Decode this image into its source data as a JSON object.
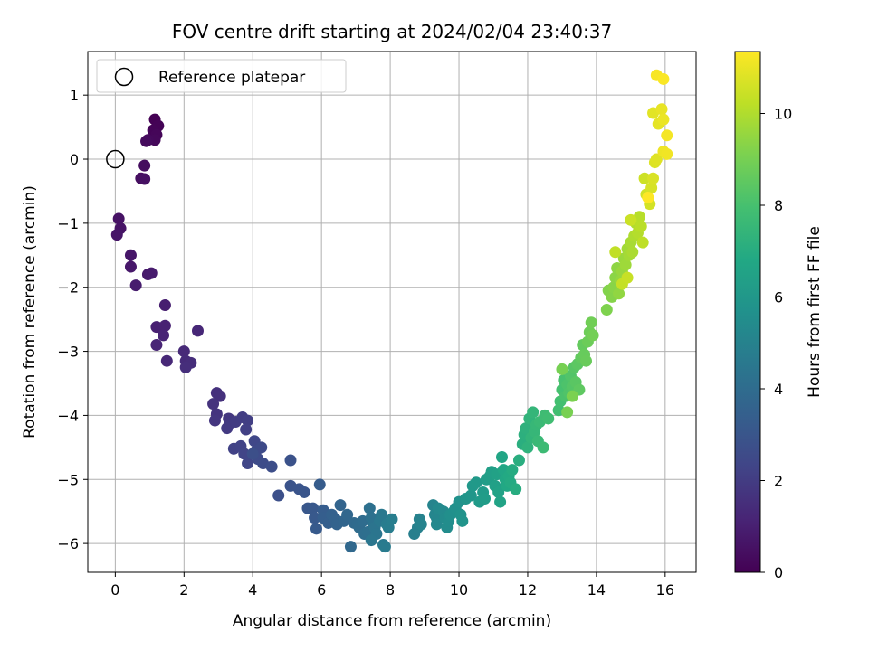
{
  "chart_data": {
    "type": "scatter",
    "title": "FOV centre drift starting at 2024/02/04 23:40:37",
    "xlabel": "Angular distance from reference (arcmin)",
    "ylabel": "Rotation from reference (arcmin)",
    "xlim": [
      -0.8,
      16.9
    ],
    "ylim": [
      -6.45,
      1.68
    ],
    "xticks": [
      0,
      2,
      4,
      6,
      8,
      10,
      12,
      14,
      16
    ],
    "yticks": [
      -6,
      -5,
      -4,
      -3,
      -2,
      -1,
      0,
      1
    ],
    "grid": true,
    "legend": {
      "position": "top-left",
      "entries": [
        "Reference platepar"
      ]
    },
    "reference_point": {
      "x": 0,
      "y": 0
    },
    "colorbar": {
      "label": "Hours from first FF file",
      "colormap": "viridis",
      "range": [
        0,
        11.35
      ],
      "ticks": [
        0,
        2,
        4,
        6,
        8,
        10
      ]
    },
    "series": [
      {
        "points": [
          [
            1.15,
            0.62
          ],
          [
            1.25,
            0.52
          ],
          [
            1.1,
            0.45
          ],
          [
            1.2,
            0.38
          ],
          [
            1.15,
            0.3
          ],
          [
            0.95,
            0.3
          ],
          [
            0.9,
            0.28
          ],
          [
            0.85,
            -0.1
          ],
          [
            0.75,
            -0.3
          ],
          [
            0.85,
            -0.31
          ],
          [
            0.1,
            -0.93
          ],
          [
            0.15,
            -1.08
          ],
          [
            0.05,
            -1.18
          ],
          [
            0.45,
            -1.5
          ],
          [
            0.45,
            -1.68
          ],
          [
            0.95,
            -1.8
          ],
          [
            1.05,
            -1.78
          ],
          [
            0.6,
            -1.97
          ],
          [
            1.45,
            -2.28
          ],
          [
            1.2,
            -2.62
          ],
          [
            1.45,
            -2.6
          ],
          [
            1.4,
            -2.75
          ],
          [
            1.2,
            -2.9
          ],
          [
            2.4,
            -2.68
          ],
          [
            1.5,
            -3.15
          ],
          [
            2.0,
            -3.0
          ],
          [
            2.05,
            -3.15
          ],
          [
            2.2,
            -3.18
          ],
          [
            2.05,
            -3.25
          ],
          [
            2.95,
            -3.65
          ],
          [
            3.05,
            -3.7
          ],
          [
            2.85,
            -3.82
          ],
          [
            2.95,
            -3.98
          ],
          [
            2.9,
            -4.08
          ],
          [
            3.3,
            -4.05
          ],
          [
            3.35,
            -4.12
          ],
          [
            3.25,
            -4.2
          ],
          [
            3.5,
            -4.1
          ],
          [
            3.7,
            -4.03
          ],
          [
            3.85,
            -4.08
          ],
          [
            3.8,
            -4.22
          ],
          [
            3.45,
            -4.52
          ],
          [
            3.65,
            -4.48
          ],
          [
            3.75,
            -4.6
          ],
          [
            3.85,
            -4.75
          ],
          [
            4.05,
            -4.4
          ],
          [
            4.1,
            -4.55
          ],
          [
            4.25,
            -4.5
          ],
          [
            4.15,
            -4.68
          ],
          [
            4.3,
            -4.75
          ],
          [
            4.55,
            -4.8
          ],
          [
            4.0,
            -4.6
          ],
          [
            4.75,
            -5.25
          ],
          [
            5.1,
            -4.7
          ],
          [
            5.1,
            -5.1
          ],
          [
            5.35,
            -5.15
          ],
          [
            5.5,
            -5.2
          ],
          [
            5.6,
            -5.45
          ],
          [
            5.75,
            -5.45
          ],
          [
            5.8,
            -5.6
          ],
          [
            5.85,
            -5.77
          ],
          [
            5.95,
            -5.08
          ],
          [
            6.05,
            -5.48
          ],
          [
            6.05,
            -5.6
          ],
          [
            6.2,
            -5.68
          ],
          [
            6.3,
            -5.55
          ],
          [
            6.4,
            -5.62
          ],
          [
            6.45,
            -5.7
          ],
          [
            6.55,
            -5.4
          ],
          [
            6.65,
            -5.65
          ],
          [
            6.75,
            -5.55
          ],
          [
            6.85,
            -6.05
          ],
          [
            6.95,
            -5.68
          ],
          [
            7.05,
            -5.7
          ],
          [
            7.1,
            -5.75
          ],
          [
            7.2,
            -5.65
          ],
          [
            7.25,
            -5.85
          ],
          [
            7.35,
            -5.82
          ],
          [
            7.4,
            -5.45
          ],
          [
            7.45,
            -5.6
          ],
          [
            7.5,
            -5.7
          ],
          [
            7.55,
            -5.75
          ],
          [
            7.6,
            -5.85
          ],
          [
            7.45,
            -5.95
          ],
          [
            7.7,
            -5.65
          ],
          [
            7.75,
            -5.55
          ],
          [
            7.8,
            -6.02
          ],
          [
            7.85,
            -6.05
          ],
          [
            7.9,
            -5.7
          ],
          [
            7.95,
            -5.75
          ],
          [
            8.05,
            -5.62
          ],
          [
            8.7,
            -5.85
          ],
          [
            8.8,
            -5.75
          ],
          [
            8.85,
            -5.62
          ],
          [
            8.9,
            -5.7
          ],
          [
            9.25,
            -5.4
          ],
          [
            9.3,
            -5.55
          ],
          [
            9.35,
            -5.6
          ],
          [
            9.35,
            -5.7
          ],
          [
            9.4,
            -5.45
          ],
          [
            9.55,
            -5.5
          ],
          [
            9.6,
            -5.6
          ],
          [
            9.65,
            -5.75
          ],
          [
            9.7,
            -5.65
          ],
          [
            9.75,
            -5.55
          ],
          [
            9.85,
            -5.5
          ],
          [
            9.9,
            -5.45
          ],
          [
            10.0,
            -5.35
          ],
          [
            10.05,
            -5.55
          ],
          [
            10.1,
            -5.65
          ],
          [
            10.2,
            -5.3
          ],
          [
            10.35,
            -5.25
          ],
          [
            10.4,
            -5.1
          ],
          [
            10.5,
            -5.05
          ],
          [
            10.6,
            -5.35
          ],
          [
            10.7,
            -5.2
          ],
          [
            10.75,
            -5.3
          ],
          [
            10.8,
            -5.0
          ],
          [
            10.9,
            -4.95
          ],
          [
            10.95,
            -4.88
          ],
          [
            11.05,
            -5.1
          ],
          [
            11.1,
            -4.92
          ],
          [
            11.15,
            -5.2
          ],
          [
            11.2,
            -5.35
          ],
          [
            11.25,
            -4.65
          ],
          [
            11.3,
            -4.85
          ],
          [
            11.35,
            -5.0
          ],
          [
            11.4,
            -5.1
          ],
          [
            11.45,
            -4.95
          ],
          [
            11.5,
            -5.05
          ],
          [
            11.55,
            -4.85
          ],
          [
            11.65,
            -5.15
          ],
          [
            11.75,
            -4.7
          ],
          [
            11.85,
            -4.45
          ],
          [
            11.9,
            -4.3
          ],
          [
            11.95,
            -4.2
          ],
          [
            12.0,
            -4.5
          ],
          [
            12.05,
            -4.05
          ],
          [
            12.1,
            -4.35
          ],
          [
            12.15,
            -3.95
          ],
          [
            12.2,
            -4.25
          ],
          [
            12.25,
            -4.15
          ],
          [
            12.3,
            -4.4
          ],
          [
            12.35,
            -4.1
          ],
          [
            12.45,
            -4.5
          ],
          [
            12.5,
            -4.0
          ],
          [
            12.6,
            -4.05
          ],
          [
            12.9,
            -3.92
          ],
          [
            12.95,
            -3.78
          ],
          [
            13.0,
            -3.6
          ],
          [
            13.05,
            -3.45
          ],
          [
            13.1,
            -3.7
          ],
          [
            13.15,
            -3.52
          ],
          [
            13.2,
            -3.65
          ],
          [
            13.25,
            -3.38
          ],
          [
            13.3,
            -3.55
          ],
          [
            13.35,
            -3.25
          ],
          [
            13.4,
            -3.48
          ],
          [
            13.45,
            -3.2
          ],
          [
            13.5,
            -3.6
          ],
          [
            13.55,
            -3.1
          ],
          [
            13.6,
            -2.9
          ],
          [
            13.65,
            -3.05
          ],
          [
            13.7,
            -3.15
          ],
          [
            13.75,
            -2.85
          ],
          [
            13.8,
            -2.7
          ],
          [
            13.85,
            -2.55
          ],
          [
            13.9,
            -2.75
          ],
          [
            13.0,
            -3.28
          ],
          [
            13.15,
            -3.95
          ],
          [
            13.3,
            -3.7
          ],
          [
            14.3,
            -2.35
          ],
          [
            14.35,
            -2.05
          ],
          [
            14.45,
            -2.15
          ],
          [
            14.5,
            -2.0
          ],
          [
            14.55,
            -1.85
          ],
          [
            14.6,
            -1.7
          ],
          [
            14.65,
            -2.1
          ],
          [
            14.7,
            -1.9
          ],
          [
            14.75,
            -1.75
          ],
          [
            14.8,
            -1.55
          ],
          [
            14.85,
            -1.65
          ],
          [
            14.9,
            -1.4
          ],
          [
            14.95,
            -1.5
          ],
          [
            15.0,
            -1.3
          ],
          [
            15.05,
            -1.45
          ],
          [
            15.1,
            -1.2
          ],
          [
            15.15,
            -1.0
          ],
          [
            15.2,
            -1.15
          ],
          [
            15.25,
            -0.9
          ],
          [
            15.3,
            -1.05
          ],
          [
            15.35,
            -1.3
          ],
          [
            14.55,
            -1.45
          ],
          [
            14.75,
            -1.95
          ],
          [
            14.9,
            -1.85
          ],
          [
            15.0,
            -0.95
          ],
          [
            15.4,
            -0.3
          ],
          [
            15.45,
            -0.55
          ],
          [
            15.55,
            -0.7
          ],
          [
            15.6,
            -0.45
          ],
          [
            15.65,
            -0.3
          ],
          [
            15.7,
            -0.05
          ],
          [
            15.75,
            0.0
          ],
          [
            15.65,
            0.72
          ],
          [
            15.8,
            0.55
          ],
          [
            15.9,
            0.78
          ],
          [
            15.95,
            0.62
          ],
          [
            15.95,
            0.12
          ],
          [
            16.05,
            0.08
          ],
          [
            16.05,
            0.37
          ],
          [
            15.75,
            1.31
          ],
          [
            15.95,
            1.25
          ],
          [
            15.5,
            -0.6
          ]
        ]
      }
    ]
  }
}
